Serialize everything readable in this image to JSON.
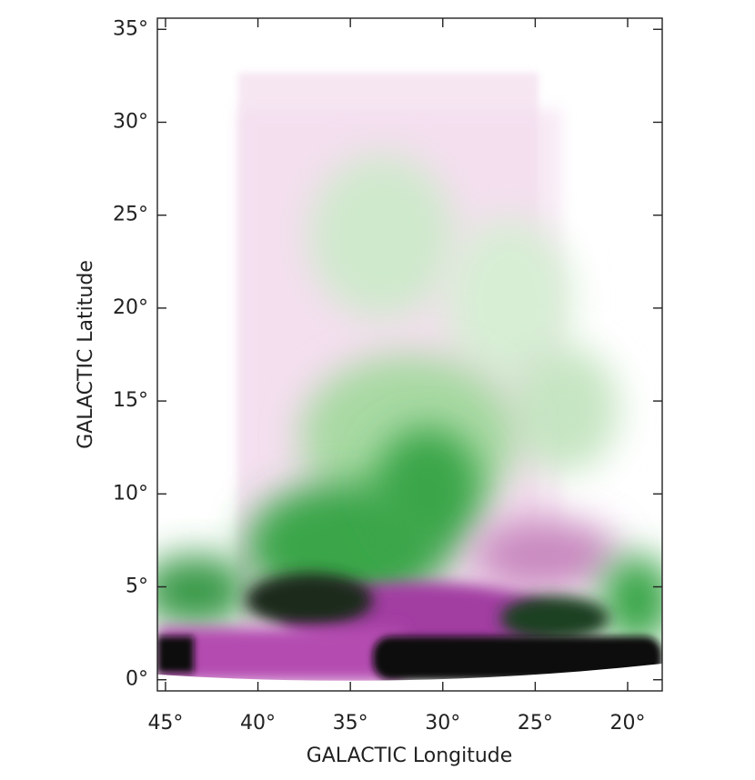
{
  "chart_data": {
    "type": "image",
    "x_label": "GALACTIC Longitude",
    "y_label": "GALACTIC Latitude",
    "xlim": [
      45.44,
      18.13
    ],
    "ylim": [
      -0.6,
      35.6
    ],
    "xticks": [
      {
        "value": 45,
        "label": "45°"
      },
      {
        "value": 40,
        "label": "40°"
      },
      {
        "value": 35,
        "label": "35°"
      },
      {
        "value": 30,
        "label": "30°"
      },
      {
        "value": 25,
        "label": "25°"
      },
      {
        "value": 20,
        "label": "20°"
      }
    ],
    "yticks": [
      {
        "value": 0,
        "label": "0°"
      },
      {
        "value": 5,
        "label": "5°"
      },
      {
        "value": 10,
        "label": "10°"
      },
      {
        "value": 15,
        "label": "15°"
      },
      {
        "value": 20,
        "label": "20°"
      },
      {
        "value": 25,
        "label": "25°"
      },
      {
        "value": 30,
        "label": "30°"
      },
      {
        "value": 35,
        "label": "35°"
      }
    ]
  }
}
